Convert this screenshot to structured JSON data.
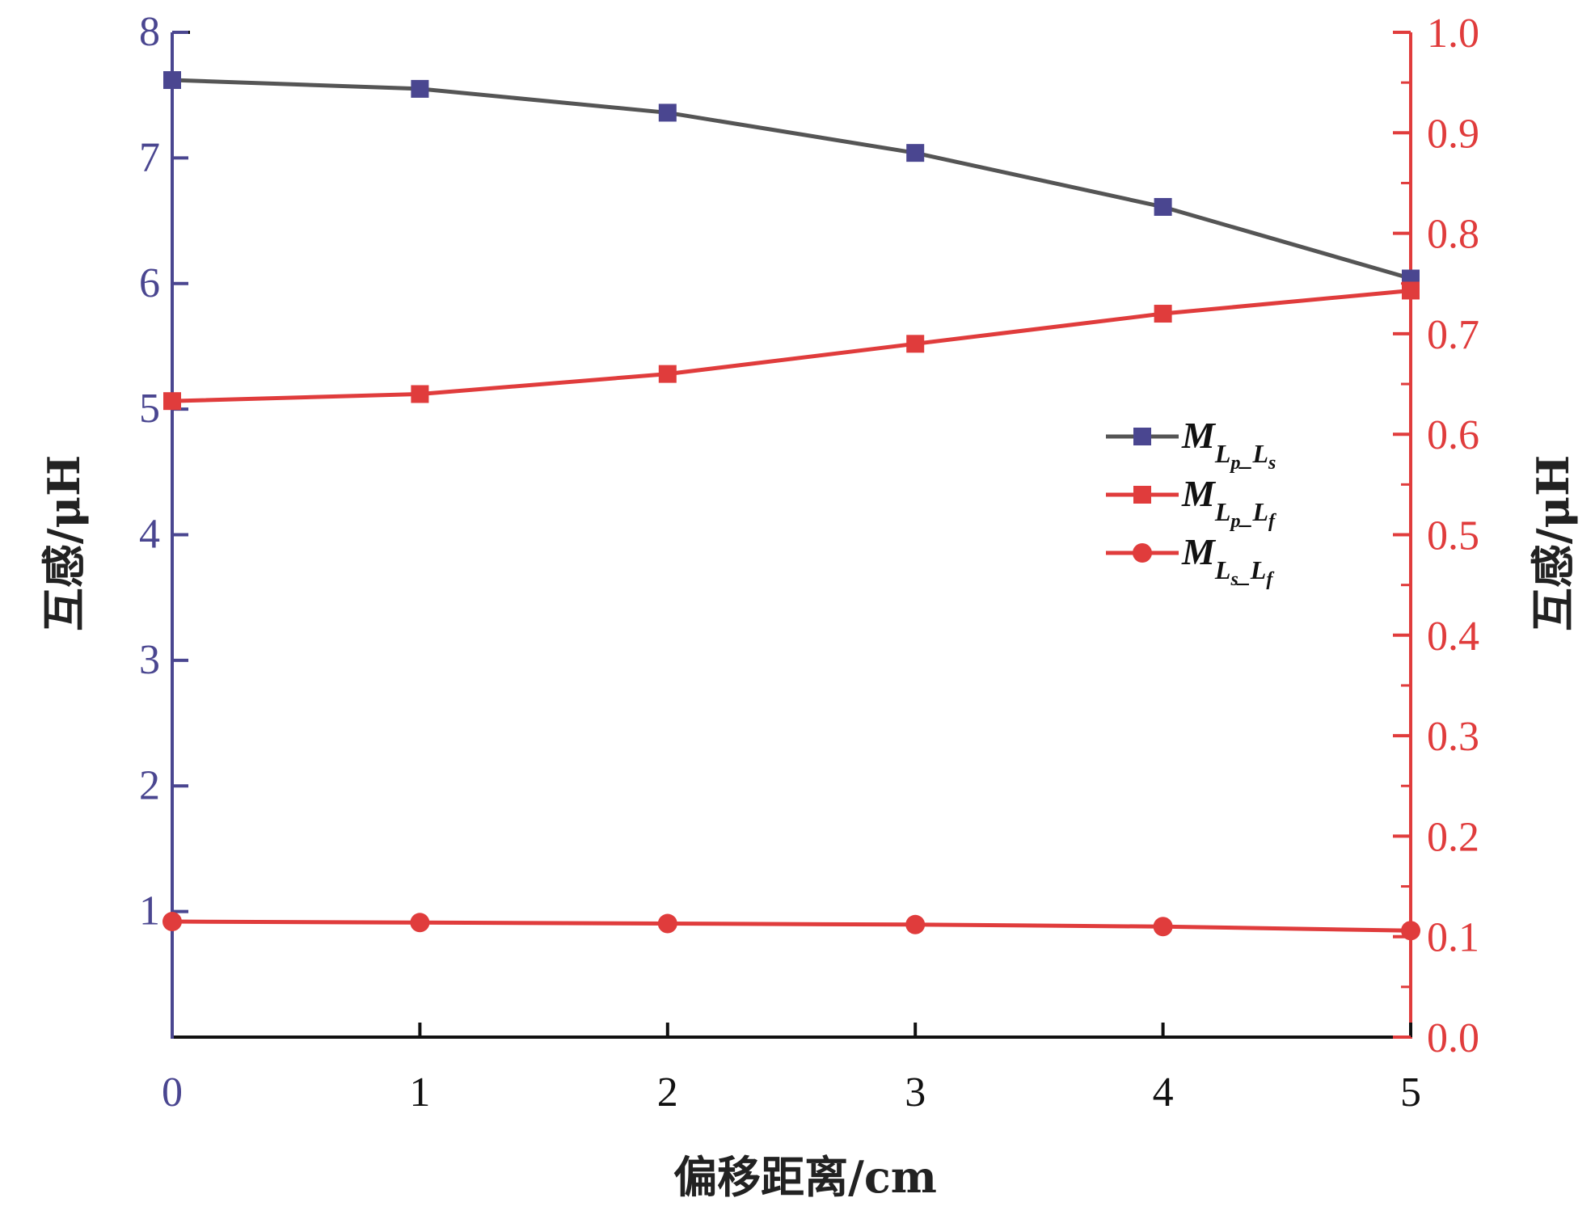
{
  "chart_data": {
    "type": "line",
    "xlabel": "偏移距离/cm",
    "ylabel_left": "互感/μH",
    "ylabel_right": "互感/μH",
    "x": [
      0,
      1,
      2,
      3,
      4,
      5
    ],
    "x_ticks": [
      "0",
      "1",
      "2",
      "3",
      "4",
      "5"
    ],
    "xlim": [
      0,
      5
    ],
    "ylim_left": [
      0,
      8
    ],
    "ylim_right": [
      0,
      1.0
    ],
    "y_ticks_left": [
      "1",
      "2",
      "3",
      "4",
      "5",
      "6",
      "7",
      "8"
    ],
    "y_ticks_right": [
      "0.0",
      "0.1",
      "0.2",
      "0.3",
      "0.4",
      "0.5",
      "0.6",
      "0.7",
      "0.8",
      "0.9",
      "1.0"
    ],
    "grid": false,
    "legend_position": "center-right",
    "colors": {
      "left_axis": "#4a4690",
      "right_axis": "#e03c3c",
      "black_line": "#555555",
      "square_marker": "#4a4690",
      "red": "#e03c3c"
    },
    "series": [
      {
        "name": "M_{Lp_Ls}",
        "legend": {
          "main": "M",
          "sub1": "L",
          "sub1sub": "p",
          "sep": "_",
          "sub2": "L",
          "sub2sub": "s"
        },
        "axis": "left",
        "marker": "square",
        "values": [
          7.62,
          7.55,
          7.36,
          7.04,
          6.61,
          6.04
        ]
      },
      {
        "name": "M_{Lp_Lf}",
        "legend": {
          "main": "M",
          "sub1": "L",
          "sub1sub": "p",
          "sep": "_",
          "sub2": "L",
          "sub2sub": "f"
        },
        "axis": "right",
        "marker": "square",
        "values": [
          0.633,
          0.64,
          0.66,
          0.69,
          0.72,
          0.743
        ]
      },
      {
        "name": "M_{Ls_Lf}",
        "legend": {
          "main": "M",
          "sub1": "L",
          "sub1sub": "s",
          "sep": "_",
          "sub2": "L",
          "sub2sub": "f"
        },
        "axis": "right",
        "marker": "circle",
        "values": [
          0.115,
          0.114,
          0.113,
          0.112,
          0.11,
          0.106
        ]
      }
    ]
  }
}
